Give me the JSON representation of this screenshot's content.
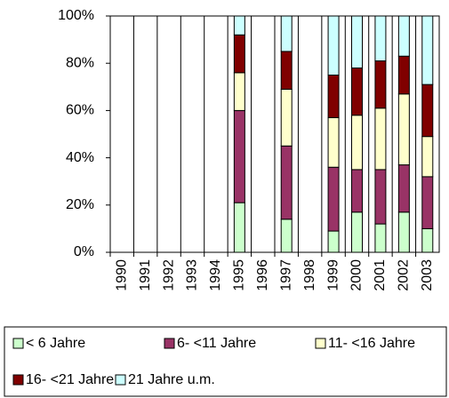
{
  "chart_data": {
    "type": "stacked_bar_100",
    "categories": [
      "1990",
      "1991",
      "1992",
      "1993",
      "1994",
      "1995",
      "1996",
      "1997",
      "1998",
      "1999",
      "2000",
      "2001",
      "2002",
      "2003"
    ],
    "series": [
      {
        "name": "< 6 Jahre",
        "color": "#ccffcc",
        "values": [
          null,
          null,
          null,
          null,
          null,
          21,
          null,
          14,
          null,
          9,
          17,
          12,
          17,
          10
        ]
      },
      {
        "name": "6- <11 Jahre",
        "color": "#993366",
        "values": [
          null,
          null,
          null,
          null,
          null,
          39,
          null,
          31,
          null,
          27,
          18,
          23,
          20,
          22
        ]
      },
      {
        "name": "11- <16 Jahre",
        "color": "#ffffcc",
        "values": [
          null,
          null,
          null,
          null,
          null,
          16,
          null,
          24,
          null,
          21,
          23,
          26,
          30,
          17
        ]
      },
      {
        "name": "16- <21 Jahre",
        "color": "#800000",
        "values": [
          null,
          null,
          null,
          null,
          null,
          16,
          null,
          16,
          null,
          18,
          20,
          20,
          16,
          22
        ]
      },
      {
        "name": "21 Jahre u.m.",
        "color": "#ccffff",
        "values": [
          null,
          null,
          null,
          null,
          null,
          8,
          null,
          15,
          null,
          25,
          22,
          19,
          17,
          29
        ]
      }
    ],
    "ylim": [
      0,
      100
    ],
    "yticks": [
      {
        "value": 0,
        "label": "0%"
      },
      {
        "value": 20,
        "label": "20%"
      },
      {
        "value": 40,
        "label": "40%"
      },
      {
        "value": 60,
        "label": "60%"
      },
      {
        "value": 80,
        "label": "80%"
      },
      {
        "value": 100,
        "label": "100%"
      }
    ],
    "legend": "bottom"
  }
}
